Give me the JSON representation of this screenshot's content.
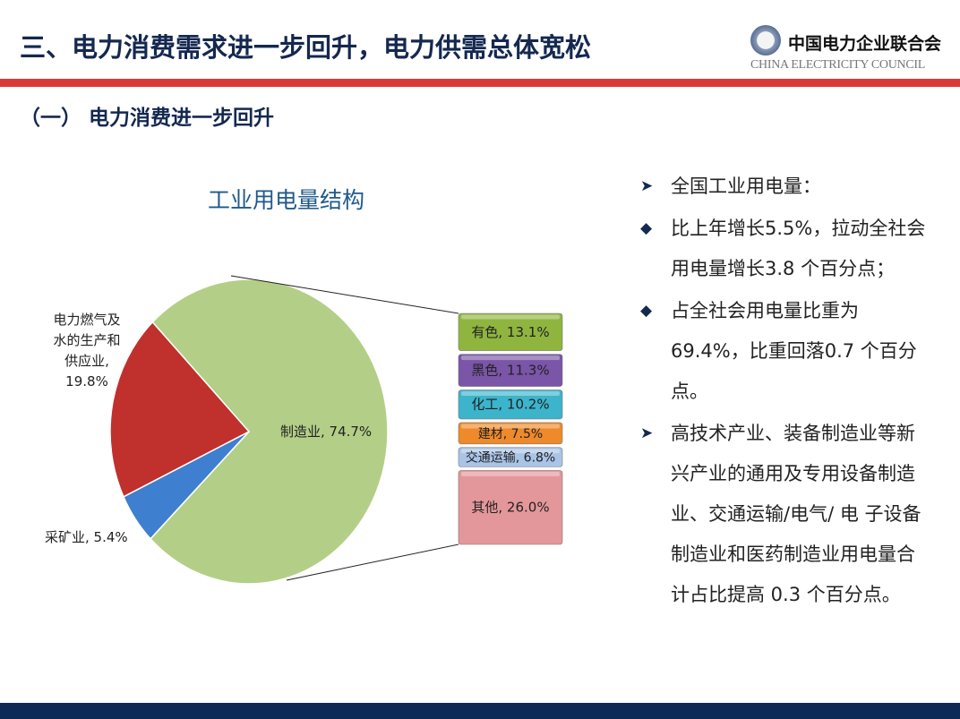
{
  "header": {
    "title": "三、电力消费需求进一步回升，电力供需总体宽松",
    "logo_cn": "中国电力企业联合会",
    "logo_en": "CHINA ELECTRICITY COUNCIL"
  },
  "subtitle": "（一） 电力消费进一步回升",
  "chart_data": {
    "type": "pie",
    "title": "工业用电量结构",
    "slices": [
      {
        "label": "制造业, 74.7%",
        "name": "制造业",
        "value": 74.7,
        "color": "#b3cf87"
      },
      {
        "label": "电力燃气及水的生产和供应业, 19.8%",
        "name": "电力燃气及水的生产和供应业",
        "value": 19.8,
        "color": "#c0302c"
      },
      {
        "label": "采矿业, 5.4%",
        "name": "采矿业",
        "value": 5.4,
        "color": "#3f7fd0"
      }
    ],
    "breakdown_of": "制造业",
    "breakdown": [
      {
        "label": "有色, 13.1%",
        "name": "有色",
        "value": 13.1,
        "color": "#8fb53f"
      },
      {
        "label": "黑色, 11.3%",
        "name": "黑色",
        "value": 11.3,
        "color": "#7a55a8"
      },
      {
        "label": "化工, 10.2%",
        "name": "化工",
        "value": 10.2,
        "color": "#3cb4cc"
      },
      {
        "label": "建材, 7.5%",
        "name": "建材",
        "value": 7.5,
        "color": "#ee8a2a"
      },
      {
        "label": "交通运输, 6.8%",
        "name": "交通运输",
        "value": 6.8,
        "color": "#a9c4e6"
      },
      {
        "label": "其他, 26.0%",
        "name": "其他",
        "value": 26.0,
        "color": "#e3979a"
      }
    ]
  },
  "pie_labels": {
    "power_line1": "电力燃气及",
    "power_line2": "水的生产和",
    "power_line3": "供应业,",
    "power_line4": "19.8%"
  },
  "text_panel": {
    "items": [
      {
        "bullet": "arrow",
        "text": "全国工业用电量："
      },
      {
        "bullet": "diamond",
        "text": "比上年增长5.5%，拉动全社会用电量增长3.8 个百分点；"
      },
      {
        "bullet": "diamond",
        "text": "占全社会用电量比重为69.4%，比重回落0.7 个百分点。"
      },
      {
        "bullet": "arrow",
        "text": "高技术产业、装备制造业等新兴产业的通用及专用设备制造业、交通运输/电气/ 电 子设备制造业和医药制造业用电量合计占比提高 0.3 个百分点。"
      }
    ]
  },
  "colors": {
    "title": "#142850",
    "accent_red": "#d93a35",
    "footer": "#0c2a55"
  }
}
